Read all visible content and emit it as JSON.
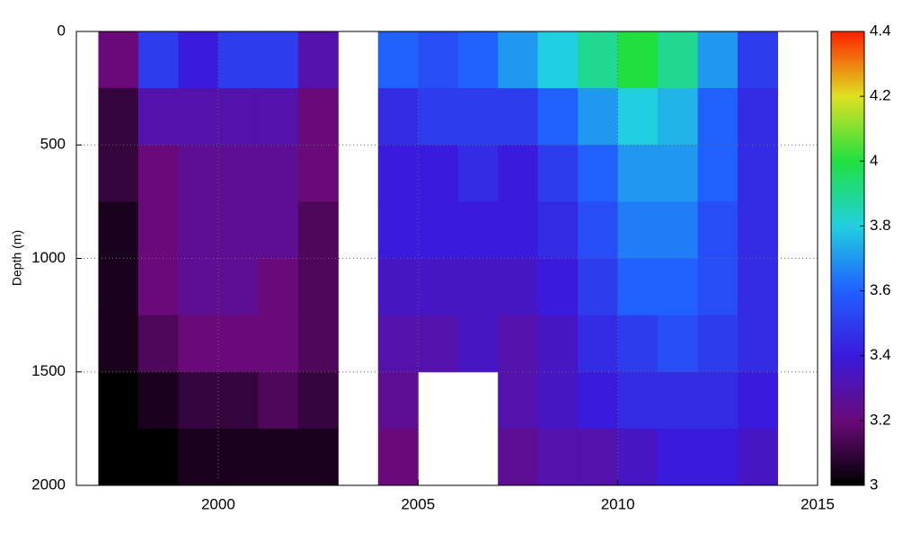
{
  "chart_data": {
    "type": "heatmap",
    "ylabel": "Depth (m)",
    "x": [
      1997.5,
      1998.5,
      1999.5,
      2000.5,
      2001.5,
      2002.5,
      2003.5,
      2004.5,
      2005.5,
      2006.5,
      2007.5,
      2008.5,
      2009.5,
      2010.5,
      2011.5,
      2012.5,
      2013.5
    ],
    "y": [
      125,
      375,
      625,
      875,
      1125,
      1375,
      1625,
      1875
    ],
    "values": [
      [
        3.2,
        3.1,
        3.1,
        3.05,
        3.05,
        3.05,
        3.0,
        3.0
      ],
      [
        3.5,
        3.3,
        3.2,
        3.2,
        3.2,
        3.15,
        3.05,
        3.0
      ],
      [
        3.4,
        3.3,
        3.25,
        3.25,
        3.25,
        3.2,
        3.1,
        3.05
      ],
      [
        3.5,
        3.3,
        3.25,
        3.25,
        3.25,
        3.2,
        3.1,
        3.05
      ],
      [
        3.5,
        3.3,
        3.25,
        3.25,
        3.2,
        3.2,
        3.15,
        3.05
      ],
      [
        3.3,
        3.2,
        3.2,
        3.15,
        3.15,
        3.15,
        3.1,
        3.05
      ],
      [
        null,
        null,
        null,
        null,
        null,
        null,
        null,
        null
      ],
      [
        3.6,
        3.45,
        3.4,
        3.4,
        3.35,
        3.3,
        3.25,
        3.2
      ],
      [
        3.55,
        3.5,
        3.4,
        3.4,
        3.35,
        3.3,
        null,
        null
      ],
      [
        3.6,
        3.5,
        3.45,
        3.4,
        3.35,
        3.35,
        null,
        null
      ],
      [
        3.7,
        3.5,
        3.4,
        3.4,
        3.35,
        3.3,
        3.3,
        3.25
      ],
      [
        3.8,
        3.6,
        3.5,
        3.45,
        3.4,
        3.35,
        3.35,
        3.3
      ],
      [
        3.9,
        3.7,
        3.6,
        3.55,
        3.5,
        3.45,
        3.4,
        3.3
      ],
      [
        4.0,
        3.8,
        3.7,
        3.65,
        3.6,
        3.5,
        3.45,
        3.35
      ],
      [
        3.9,
        3.75,
        3.7,
        3.65,
        3.6,
        3.55,
        3.45,
        3.4
      ],
      [
        3.7,
        3.6,
        3.6,
        3.55,
        3.55,
        3.5,
        3.45,
        3.4
      ],
      [
        3.5,
        3.45,
        3.45,
        3.45,
        3.45,
        3.45,
        3.4,
        3.35
      ]
    ],
    "xlim": [
      1996.45,
      2015
    ],
    "xticks": [
      2000,
      2005,
      2010,
      2015
    ],
    "ylim": [
      0,
      2000
    ],
    "yticks": [
      0,
      500,
      1000,
      1500,
      2000
    ],
    "invert_y": true,
    "grid": true,
    "clim": [
      3,
      4.4
    ],
    "cticks": [
      3,
      3.2,
      3.4,
      3.6,
      3.8,
      4,
      4.2,
      4.4
    ],
    "colormap": [
      "#000000",
      "#6a0a7a",
      "#3a1adc",
      "#2060ff",
      "#20d0e0",
      "#20e040",
      "#e0e020",
      "#ff2000"
    ]
  }
}
